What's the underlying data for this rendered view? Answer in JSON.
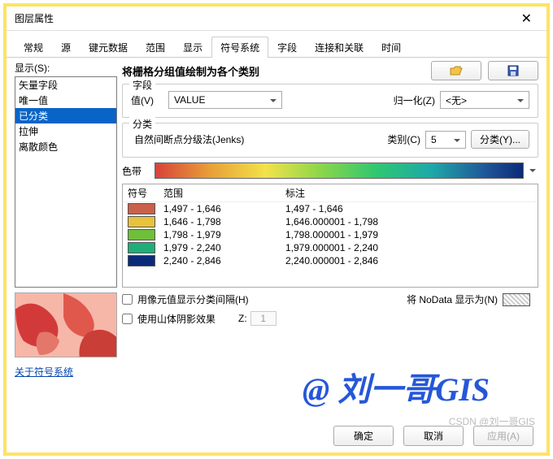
{
  "window": {
    "title": "图层属性"
  },
  "tabs": [
    "常规",
    "源",
    "键元数据",
    "范围",
    "显示",
    "符号系统",
    "字段",
    "连接和关联",
    "时间"
  ],
  "active_tab_index": 5,
  "left": {
    "show_label": "显示(S):",
    "items": [
      "矢量字段",
      "唯一值",
      "已分类",
      "拉伸",
      "离散颜色"
    ],
    "selected_index": 2,
    "help_link": "关于符号系统"
  },
  "main": {
    "heading": "将栅格分组值绘制为各个类别",
    "field_group_title": "字段",
    "field_label": "值(V)",
    "field_value": "VALUE",
    "normalize_label": "归一化(Z)",
    "normalize_value": "<无>",
    "class_group_title": "分类",
    "class_method": "自然间断点分级法(Jenks)",
    "class_count_label": "类别(C)",
    "class_count_value": "5",
    "classify_btn": "分类(Y)...",
    "ramp_label": "色带",
    "table": {
      "headers": [
        "符号",
        "范围",
        "标注"
      ],
      "rows": [
        {
          "color": "#c9614a",
          "range": "1,497 - 1,646",
          "label": "1,497 - 1,646"
        },
        {
          "color": "#e8c23a",
          "range": "1,646 - 1,798",
          "label": "1,646.000001 - 1,798"
        },
        {
          "color": "#6fbf3a",
          "range": "1,798 - 1,979",
          "label": "1,798.000001 - 1,979"
        },
        {
          "color": "#1fae7a",
          "range": "1,979 - 2,240",
          "label": "1,979.000001 - 2,240"
        },
        {
          "color": "#0b2a78",
          "range": "2,240 - 2,846",
          "label": "2,240.000001 - 2,846"
        }
      ]
    },
    "cb_pixel": "用像元值显示分类间隔(H)",
    "cb_hillshade": "使用山体阴影效果",
    "z_label": "Z:",
    "z_value": "1",
    "nodata_label": "将 NoData 显示为(N)"
  },
  "footer": {
    "ok": "确定",
    "cancel": "取消",
    "apply": "应用(A)"
  },
  "watermark": "@ 刘一哥GIS",
  "csdn": "CSDN @刘一哥GIS"
}
